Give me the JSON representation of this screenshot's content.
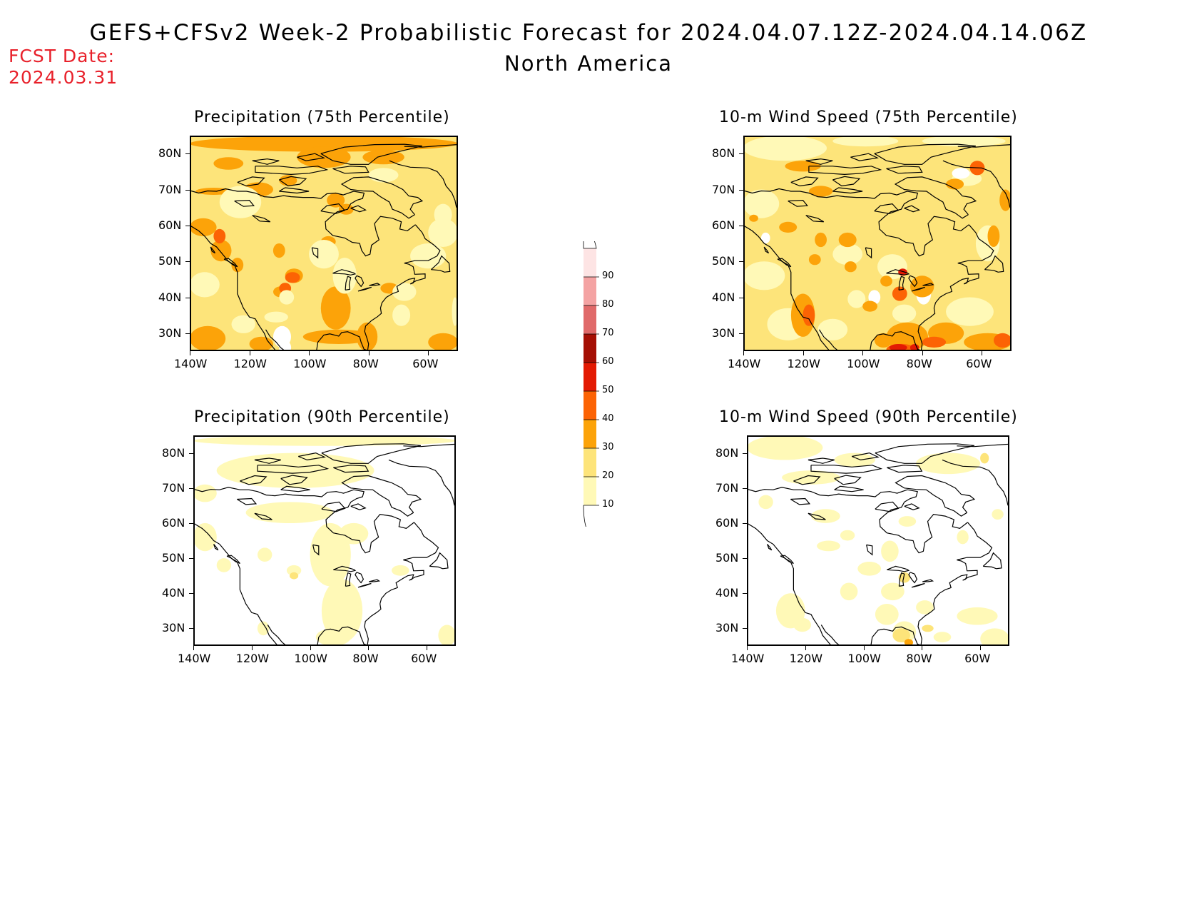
{
  "title": "GEFS+CFSv2 Week-2 Probabilistic Forecast for 2024.04.07.12Z-2024.04.14.06Z",
  "subtitle": "North America",
  "fcst_date": {
    "label": "FCST Date:",
    "value": "2024.03.31"
  },
  "colors": {
    "c10": "#fff9b7",
    "c20": "#fde47a",
    "c30": "#fca309",
    "c40": "#fc6304",
    "c50": "#e31a03",
    "c60": "#a50f04",
    "c70": "#e06a6a",
    "c80": "#f4a3a3",
    "c90": "#fde4e4"
  },
  "colorbar": {
    "labels": [
      "10",
      "20",
      "30",
      "40",
      "50",
      "60",
      "70",
      "80",
      "90"
    ]
  },
  "axes": {
    "lat_labels": [
      "80N",
      "70N",
      "60N",
      "50N",
      "40N",
      "30N"
    ],
    "lon_labels": [
      "140W",
      "120W",
      "100W",
      "80W",
      "60W"
    ]
  },
  "panels": [
    {
      "id": "precip75",
      "title": "Precipitation (75th Percentile)"
    },
    {
      "id": "wind75",
      "title": "10-m Wind Speed (75th Percentile)"
    },
    {
      "id": "precip90",
      "title": "Precipitation (90th Percentile)"
    },
    {
      "id": "wind90",
      "title": "10-m Wind Speed (90th Percentile)"
    }
  ]
}
